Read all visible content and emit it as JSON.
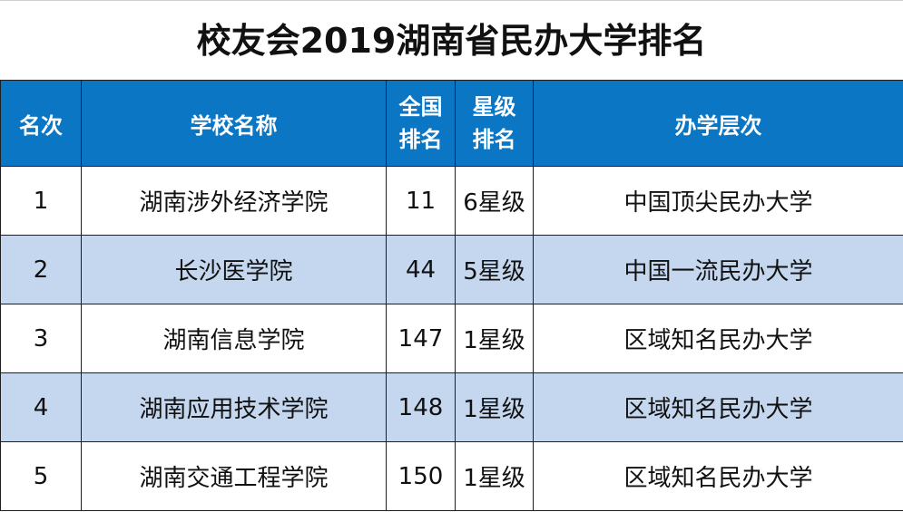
{
  "title": "校友会2019湖南省民办大学排名",
  "headers": {
    "rank": "名次",
    "school": "学校名称",
    "national_line1": "全国",
    "national_line2": "排名",
    "star_line1": "星级",
    "star_line2": "排名",
    "level": "办学层次"
  },
  "rows": [
    {
      "rank": "1",
      "school": "湖南涉外经济学院",
      "national": "11",
      "star": "6星级",
      "level": "中国顶尖民办大学"
    },
    {
      "rank": "2",
      "school": "长沙医学院",
      "national": "44",
      "star": "5星级",
      "level": "中国一流民办大学"
    },
    {
      "rank": "3",
      "school": "湖南信息学院",
      "national": "147",
      "star": "1星级",
      "level": "区域知名民办大学"
    },
    {
      "rank": "4",
      "school": "湖南应用技术学院",
      "national": "148",
      "star": "1星级",
      "level": "区域知名民办大学"
    },
    {
      "rank": "5",
      "school": "湖南交通工程学院",
      "national": "150",
      "star": "1星级",
      "level": "区域知名民办大学"
    }
  ],
  "colors": {
    "header_bg": "#0b76c4",
    "header_text": "#ffffff",
    "alt_row_bg": "#c4d7ee",
    "border": "#1f1f1f"
  }
}
